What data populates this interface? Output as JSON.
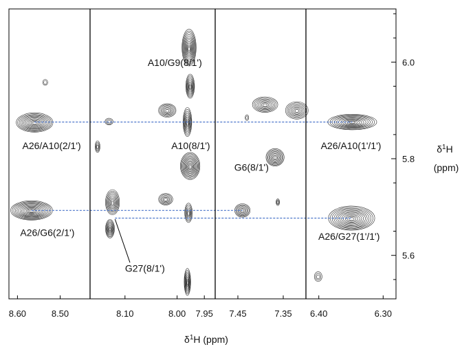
{
  "chart_data": {
    "type": "scatter",
    "description_free": true,
    "x_axis": {
      "label_prefix": "δ",
      "label_sup": "1",
      "label_suffix": "H (ppm)",
      "panels": [
        {
          "range": [
            8.62,
            8.43
          ],
          "ticks": [
            "8.60",
            "8.50"
          ]
        },
        {
          "range": [
            8.17,
            8.05
          ],
          "ticks": [
            "8.10"
          ]
        },
        {
          "range": [
            8.05,
            7.93
          ],
          "ticks": [
            "8.00",
            "7.95"
          ]
        },
        {
          "range": [
            7.5,
            7.3
          ],
          "ticks": [
            "7.45",
            "7.35"
          ]
        },
        {
          "range": [
            6.42,
            6.28
          ],
          "ticks": [
            "6.40",
            "6.30"
          ]
        }
      ]
    },
    "y_axis": {
      "label_prefix": "δ",
      "label_sup": "1",
      "label_suffix": "H",
      "label_unit": "(ppm)",
      "range": [
        6.11,
        5.51
      ],
      "ticks": [
        "5.6",
        "5.8",
        "6.0"
      ],
      "minor_ticks": [
        5.55,
        5.65,
        5.75,
        5.85,
        5.95,
        6.05,
        6.1
      ],
      "side": "right"
    },
    "peaks": [
      {
        "id": "p1",
        "x": 8.567,
        "y": 5.693,
        "rx": 0.049,
        "ry": 0.02,
        "levels": 13
      },
      {
        "id": "p2",
        "x": 8.56,
        "y": 5.875,
        "rx": 0.043,
        "ry": 0.02,
        "levels": 12
      },
      {
        "id": "p3",
        "x": 8.535,
        "y": 5.958,
        "rx": 0.006,
        "ry": 0.006,
        "levels": 2
      },
      {
        "id": "p4",
        "x": 8.13,
        "y": 5.655,
        "rx": 0.009,
        "ry": 0.019,
        "levels": 8
      },
      {
        "id": "p5",
        "x": 8.125,
        "y": 5.71,
        "rx": 0.014,
        "ry": 0.026,
        "levels": 9
      },
      {
        "id": "p6",
        "x": 8.155,
        "y": 5.825,
        "rx": 0.005,
        "ry": 0.012,
        "levels": 4
      },
      {
        "id": "p7",
        "x": 8.132,
        "y": 5.877,
        "rx": 0.008,
        "ry": 0.007,
        "levels": 3
      },
      {
        "id": "p8",
        "x": 8.021,
        "y": 5.716,
        "rx": 0.013,
        "ry": 0.012,
        "levels": 6
      },
      {
        "id": "p9",
        "x": 8.018,
        "y": 5.9,
        "rx": 0.016,
        "ry": 0.014,
        "levels": 7
      },
      {
        "id": "p10",
        "x": 7.981,
        "y": 5.545,
        "rx": 0.006,
        "ry": 0.028,
        "levels": 8
      },
      {
        "id": "p11",
        "x": 7.979,
        "y": 5.688,
        "rx": 0.007,
        "ry": 0.02,
        "levels": 6
      },
      {
        "id": "p12",
        "x": 7.976,
        "y": 5.785,
        "rx": 0.018,
        "ry": 0.028,
        "levels": 12
      },
      {
        "id": "p13",
        "x": 7.981,
        "y": 5.876,
        "rx": 0.008,
        "ry": 0.03,
        "levels": 8
      },
      {
        "id": "p14",
        "x": 7.976,
        "y": 5.95,
        "rx": 0.008,
        "ry": 0.025,
        "levels": 8
      },
      {
        "id": "p15",
        "x": 7.978,
        "y": 6.03,
        "rx": 0.013,
        "ry": 0.038,
        "levels": 11
      },
      {
        "id": "p16",
        "x": 7.44,
        "y": 5.693,
        "rx": 0.017,
        "ry": 0.014,
        "levels": 7
      },
      {
        "id": "p17",
        "x": 7.362,
        "y": 5.71,
        "rx": 0.004,
        "ry": 0.007,
        "levels": 3
      },
      {
        "id": "p18",
        "x": 7.368,
        "y": 5.803,
        "rx": 0.02,
        "ry": 0.018,
        "levels": 9
      },
      {
        "id": "p19",
        "x": 7.39,
        "y": 5.912,
        "rx": 0.028,
        "ry": 0.016,
        "levels": 8
      },
      {
        "id": "p20",
        "x": 7.32,
        "y": 5.9,
        "rx": 0.025,
        "ry": 0.018,
        "levels": 8
      },
      {
        "id": "p21",
        "x": 7.43,
        "y": 5.885,
        "rx": 0.004,
        "ry": 0.006,
        "levels": 2
      },
      {
        "id": "p22",
        "x": 6.401,
        "y": 5.556,
        "rx": 0.006,
        "ry": 0.01,
        "levels": 3
      },
      {
        "id": "p23",
        "x": 6.349,
        "y": 5.677,
        "rx": 0.036,
        "ry": 0.025,
        "levels": 12
      },
      {
        "id": "p24",
        "x": 6.348,
        "y": 5.876,
        "rx": 0.038,
        "ry": 0.016,
        "levels": 11
      }
    ],
    "crosspeak_lines": [
      {
        "y": 5.677,
        "from": {
          "panel": 1,
          "x": 8.12
        },
        "to": {
          "panel": 4,
          "x": 6.349
        }
      },
      {
        "y": 5.693,
        "from": {
          "panel": 0,
          "x": 8.567
        },
        "to": {
          "panel": 3,
          "x": 7.44
        }
      },
      {
        "y": 5.876,
        "from": {
          "panel": 0,
          "x": 8.56
        },
        "to": {
          "panel": 4,
          "x": 6.348
        }
      }
    ],
    "annotations": [
      {
        "text": "A26/G6(2/1')",
        "panel": 0,
        "x": 8.53,
        "y": 5.64
      },
      {
        "text": "A26/A10(2/1')",
        "panel": 0,
        "x": 8.52,
        "y": 5.82
      },
      {
        "text": "G27(8/1')",
        "panel": 1,
        "x": 8.06,
        "y": 5.566
      },
      {
        "text": "A10(8/1')",
        "panel": 2,
        "x": 7.975,
        "y": 5.82
      },
      {
        "text": "A10/G9(8/1')",
        "panel": 1,
        "x": 8.0,
        "y": 5.992
      },
      {
        "text": "G6(8/1')",
        "panel": 3,
        "x": 7.42,
        "y": 5.775
      },
      {
        "text": "A26/G27(1'/1')",
        "panel": 4,
        "x": 6.353,
        "y": 5.632
      },
      {
        "text": "A26/A10(1'/1')",
        "panel": 4,
        "x": 6.35,
        "y": 5.82
      }
    ],
    "colors": {
      "contour": "#2a2a2a",
      "frame": "#000000",
      "crosspeak_line": "#4a74c9"
    }
  }
}
